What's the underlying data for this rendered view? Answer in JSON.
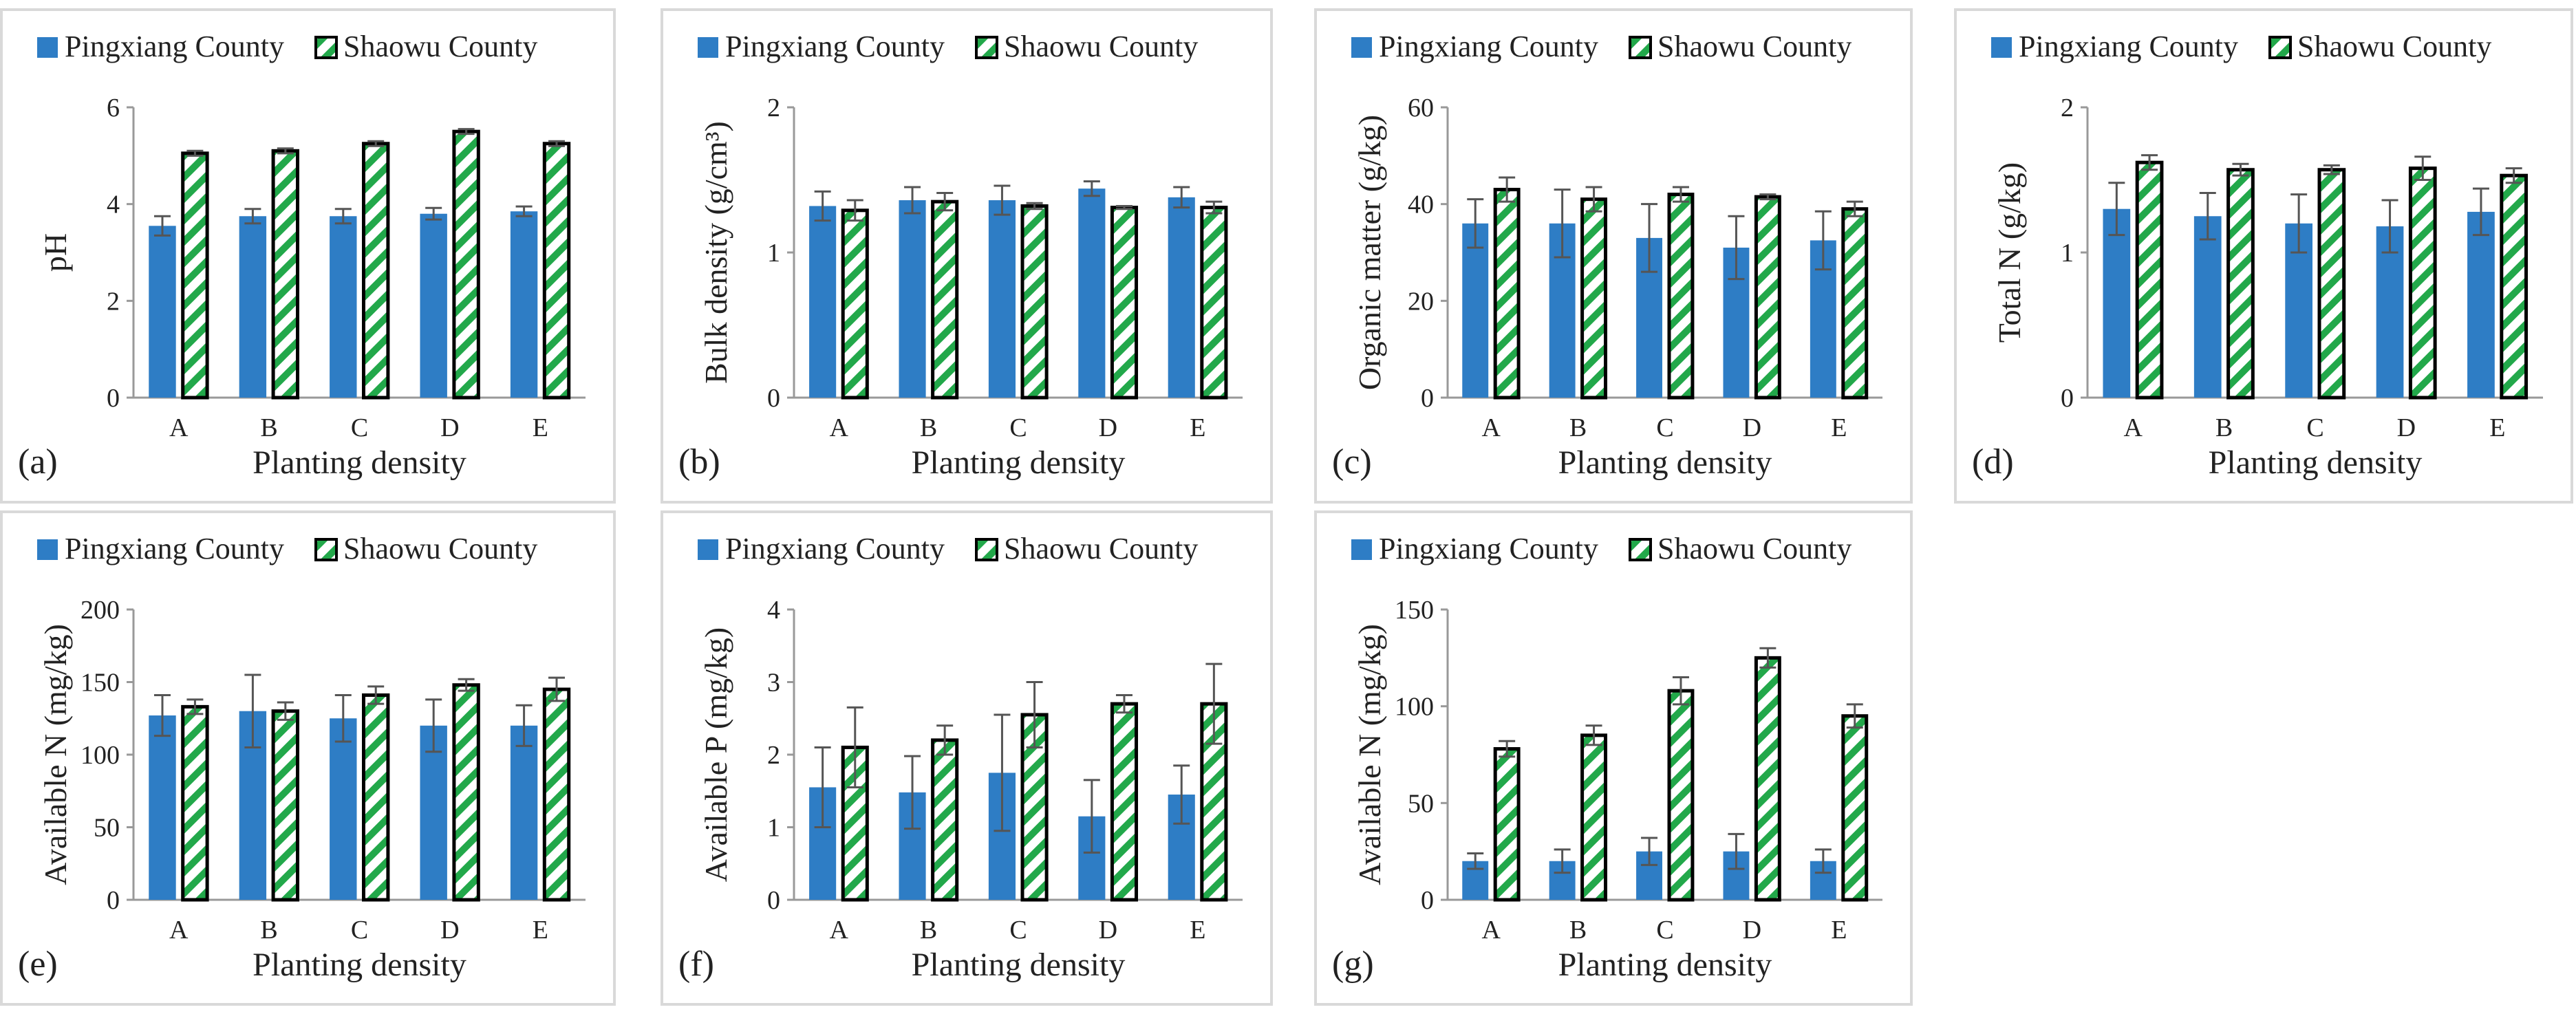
{
  "figure": {
    "legend_labels": [
      "Pingxiang County",
      "Shaowu County"
    ]
  },
  "styles": {
    "pingxiang_color": "#2e7dc5",
    "shaowu_stripe": "#22a84a",
    "outline": "#000000",
    "error_bar": "#555555"
  },
  "chart_data": [
    {
      "id": "a",
      "type": "bar",
      "panel_label": "(a)",
      "xlabel": "Planting density",
      "ylabel": "pH",
      "categories": [
        "A",
        "B",
        "C",
        "D",
        "E"
      ],
      "ylim": [
        0,
        6
      ],
      "yticks": [
        0,
        2,
        4,
        6
      ],
      "series": [
        {
          "name": "Pingxiang County",
          "values": [
            3.55,
            3.75,
            3.75,
            3.8,
            3.85
          ],
          "errors": [
            0.2,
            0.15,
            0.15,
            0.12,
            0.1
          ]
        },
        {
          "name": "Shaowu County",
          "values": [
            5.05,
            5.1,
            5.25,
            5.5,
            5.25
          ],
          "errors": [
            0.05,
            0.05,
            0.05,
            0.05,
            0.05
          ]
        }
      ],
      "legend": "top",
      "grid": false
    },
    {
      "id": "b",
      "type": "bar",
      "panel_label": "(b)",
      "xlabel": "Planting density",
      "ylabel": "Bulk density (g/cm³)",
      "categories": [
        "A",
        "B",
        "C",
        "D",
        "E"
      ],
      "ylim": [
        0,
        2
      ],
      "yticks": [
        0,
        1,
        2
      ],
      "series": [
        {
          "name": "Pingxiang County",
          "values": [
            1.32,
            1.36,
            1.36,
            1.44,
            1.38
          ],
          "errors": [
            0.1,
            0.09,
            0.1,
            0.05,
            0.07
          ]
        },
        {
          "name": "Shaowu County",
          "values": [
            1.29,
            1.35,
            1.32,
            1.31,
            1.31
          ],
          "errors": [
            0.07,
            0.06,
            0.02,
            0.01,
            0.04
          ]
        }
      ],
      "legend": "top",
      "grid": false
    },
    {
      "id": "c",
      "type": "bar",
      "panel_label": "(c)",
      "xlabel": "Planting density",
      "ylabel": "Organic matter (g/kg)",
      "categories": [
        "A",
        "B",
        "C",
        "D",
        "E"
      ],
      "ylim": [
        0,
        60
      ],
      "yticks": [
        0,
        20,
        40,
        60
      ],
      "series": [
        {
          "name": "Pingxiang County",
          "values": [
            36,
            36,
            33,
            31,
            32.5
          ],
          "errors": [
            5,
            7,
            7,
            6.5,
            6
          ]
        },
        {
          "name": "Shaowu County",
          "values": [
            43,
            41,
            42,
            41.5,
            39
          ],
          "errors": [
            2.5,
            2.5,
            1.5,
            0.5,
            1.5
          ]
        }
      ],
      "legend": "top",
      "grid": false
    },
    {
      "id": "d",
      "type": "bar",
      "panel_label": "(d)",
      "xlabel": "Planting density",
      "ylabel": "Total N (g/kg)",
      "categories": [
        "A",
        "B",
        "C",
        "D",
        "E"
      ],
      "ylim": [
        0,
        2
      ],
      "yticks": [
        0,
        1,
        2
      ],
      "series": [
        {
          "name": "Pingxiang County",
          "values": [
            1.3,
            1.25,
            1.2,
            1.18,
            1.28
          ],
          "errors": [
            0.18,
            0.16,
            0.2,
            0.18,
            0.16
          ]
        },
        {
          "name": "Shaowu County",
          "values": [
            1.62,
            1.57,
            1.57,
            1.58,
            1.53
          ],
          "errors": [
            0.05,
            0.04,
            0.03,
            0.08,
            0.05
          ]
        }
      ],
      "legend": "top",
      "grid": false
    },
    {
      "id": "e",
      "type": "bar",
      "panel_label": "(e)",
      "xlabel": "Planting density",
      "ylabel": "Available N (mg/kg)",
      "categories": [
        "A",
        "B",
        "C",
        "D",
        "E"
      ],
      "ylim": [
        0,
        200
      ],
      "yticks": [
        0,
        50,
        100,
        150,
        200
      ],
      "series": [
        {
          "name": "Pingxiang County",
          "values": [
            127,
            130,
            125,
            120,
            120
          ],
          "errors": [
            14,
            25,
            16,
            18,
            14
          ]
        },
        {
          "name": "Shaowu County",
          "values": [
            133,
            130,
            141,
            148,
            145
          ],
          "errors": [
            5,
            6,
            6,
            4,
            8
          ]
        }
      ],
      "legend": "top",
      "grid": false
    },
    {
      "id": "f",
      "type": "bar",
      "panel_label": "(f)",
      "xlabel": "Planting density",
      "ylabel": "Available P (mg/kg)",
      "categories": [
        "A",
        "B",
        "C",
        "D",
        "E"
      ],
      "ylim": [
        0,
        4
      ],
      "yticks": [
        0,
        1,
        2,
        3,
        4
      ],
      "series": [
        {
          "name": "Pingxiang County",
          "values": [
            1.55,
            1.48,
            1.75,
            1.15,
            1.45
          ],
          "errors": [
            0.55,
            0.5,
            0.8,
            0.5,
            0.4
          ]
        },
        {
          "name": "Shaowu County",
          "values": [
            2.1,
            2.2,
            2.55,
            2.7,
            2.7
          ],
          "errors": [
            0.55,
            0.2,
            0.45,
            0.12,
            0.55
          ]
        }
      ],
      "legend": "top",
      "grid": false
    },
    {
      "id": "g",
      "type": "bar",
      "panel_label": "(g)",
      "xlabel": "Planting density",
      "ylabel": "Available N (mg/kg)",
      "categories": [
        "A",
        "B",
        "C",
        "D",
        "E"
      ],
      "ylim": [
        0,
        150
      ],
      "yticks": [
        0,
        50,
        100,
        150
      ],
      "series": [
        {
          "name": "Pingxiang County",
          "values": [
            20,
            20,
            25,
            25,
            20
          ],
          "errors": [
            4,
            6,
            7,
            9,
            6
          ]
        },
        {
          "name": "Shaowu County",
          "values": [
            78,
            85,
            108,
            125,
            95
          ],
          "errors": [
            4,
            5,
            7,
            5,
            6
          ]
        }
      ],
      "legend": "top",
      "grid": false
    }
  ]
}
